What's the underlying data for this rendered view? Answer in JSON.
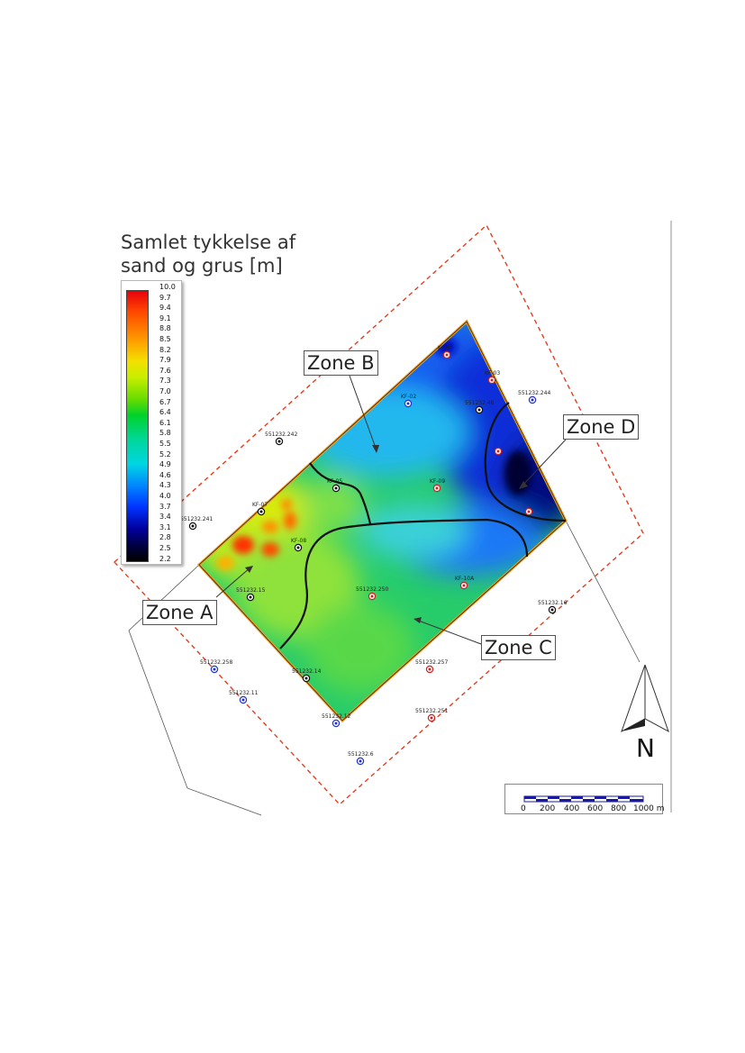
{
  "title_line1": "Samlet tykkelse af",
  "title_line2": "sand og grus [m]",
  "legend": {
    "min": 2.2,
    "max": 10.0,
    "labels": [
      "10.0",
      "9.7",
      "9.4",
      "9.1",
      "8.8",
      "8.5",
      "8.2",
      "7.9",
      "7.6",
      "7.3",
      "7.0",
      "6.7",
      "6.4",
      "6.1",
      "5.8",
      "5.5",
      "5.2",
      "4.9",
      "4.6",
      "4.3",
      "4.0",
      "3.7",
      "3.4",
      "3.1",
      "2.8",
      "2.5",
      "2.2"
    ]
  },
  "zones": {
    "a": "Zone A",
    "b": "Zone B",
    "c": "Zone C",
    "d": "Zone D"
  },
  "wells": [
    {
      "name": "KF-01",
      "color": "#cc2222"
    },
    {
      "name": "KF-03",
      "color": "#cc2222"
    },
    {
      "name": "KF-02",
      "color": "#2233cc"
    },
    {
      "name": "551232.48",
      "color": "#111111"
    },
    {
      "name": "551232.244",
      "color": "#2233cc"
    },
    {
      "name": "551232.242",
      "color": "#111111"
    },
    {
      "name": "KF-05",
      "color": "#111111"
    },
    {
      "name": "KF-09",
      "color": "#cc2222"
    },
    {
      "name": "551232.241",
      "color": "#111111"
    },
    {
      "name": "KF-07",
      "color": "#111111"
    },
    {
      "name": "KF-08",
      "color": "#111111"
    },
    {
      "name": "551232.15",
      "color": "#111111"
    },
    {
      "name": "551232.250",
      "color": "#cc2222"
    },
    {
      "name": "KF-10A",
      "color": "#cc2222"
    },
    {
      "name": "551232.16",
      "color": "#111111"
    },
    {
      "name": "551232.258",
      "color": "#2233cc"
    },
    {
      "name": "551232.14",
      "color": "#111111"
    },
    {
      "name": "551232.257",
      "color": "#cc2222"
    },
    {
      "name": "551232.11",
      "color": "#2233cc"
    },
    {
      "name": "551232.12",
      "color": "#2233cc"
    },
    {
      "name": "551232.251",
      "color": "#cc2222"
    },
    {
      "name": "551232.6",
      "color": "#2233cc"
    },
    {
      "name": "",
      "color": "#cc2222"
    },
    {
      "name": "",
      "color": "#cc2222"
    }
  ],
  "north_label": "N",
  "scale_bar": {
    "ticks": [
      "0",
      "200",
      "400",
      "600",
      "800",
      "1000 m"
    ]
  },
  "colors": {
    "boundary": "#f0a020",
    "buffer": "#e63c1e",
    "zone_lines": "#111111"
  }
}
